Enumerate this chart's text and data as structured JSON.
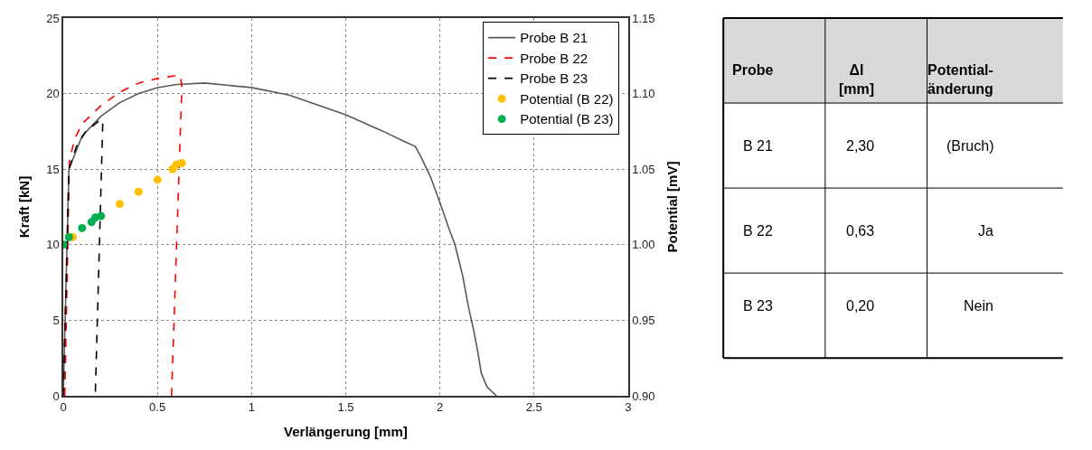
{
  "chart_data": [
    {
      "type": "line",
      "xlabel": "Verlängerung [mm]",
      "ylabel": "Kraft [kN]",
      "y2label": "Potential [mV]",
      "xlim": [
        0,
        3
      ],
      "xticks": [
        0,
        0.5,
        1,
        1.5,
        2,
        2.5,
        3
      ],
      "ylim": [
        0,
        25
      ],
      "yticks": [
        0,
        5,
        10,
        15,
        20,
        25
      ],
      "y2lim": [
        0.9,
        1.15
      ],
      "y2ticks": [
        {
          "value": 0.9,
          "label": "0.90"
        },
        {
          "value": 0.95,
          "label": "0.95"
        },
        {
          "value": 1.0,
          "label": "1.00"
        },
        {
          "value": 1.05,
          "label": "1.05"
        },
        {
          "value": 1.1,
          "label": "1.10"
        },
        {
          "value": 1.15,
          "label": "1.15"
        }
      ],
      "grid": true,
      "legend": "top right",
      "series": [
        {
          "name": "Probe B 21",
          "type": "line",
          "line_style": "solid",
          "color": "#595959",
          "x": [
            0,
            0.03,
            0.1,
            0.2,
            0.3,
            0.4,
            0.5,
            0.6,
            0.75,
            1.0,
            1.2,
            1.5,
            1.7,
            1.8,
            1.87,
            1.9,
            1.95,
            2.0,
            2.05,
            2.08,
            2.12,
            2.15,
            2.18,
            2.2,
            2.22,
            2.25,
            2.3
          ],
          "values": [
            0,
            15,
            17.2,
            18.5,
            19.4,
            20,
            20.4,
            20.6,
            20.7,
            20.4,
            19.9,
            18.6,
            17.5,
            16.9,
            16.5,
            15.8,
            14.5,
            12.8,
            11,
            10,
            8,
            6,
            4.3,
            3,
            1.5,
            0.6,
            0
          ]
        },
        {
          "name": "Probe B 22",
          "type": "line",
          "line_style": "dashed",
          "color": "#ff0000",
          "x": [
            0.008,
            0.016,
            0.024,
            0.032,
            0.06,
            0.1,
            0.2,
            0.3,
            0.4,
            0.5,
            0.6,
            0.62,
            0.63,
            0.575
          ],
          "values": [
            0,
            5,
            10,
            15.5,
            17,
            18,
            19.2,
            20.1,
            20.7,
            21,
            21.2,
            21.2,
            20.5,
            0
          ]
        },
        {
          "name": "Probe B 23",
          "type": "line",
          "line_style": "dashed",
          "color": "#000000",
          "x": [
            0,
            0.02,
            0.03,
            0.07,
            0.12,
            0.2,
            0.21,
            0.17
          ],
          "values": [
            0,
            10,
            15,
            16.5,
            17.5,
            18.3,
            18.2,
            0
          ]
        },
        {
          "name": "Potential (B 22)",
          "type": "scatter",
          "axis": "y2",
          "marker": "circle",
          "color": "#ffc000",
          "x": [
            0.05,
            0.3,
            0.4,
            0.5,
            0.58,
            0.6,
            0.63
          ],
          "values": [
            1.005,
            1.027,
            1.035,
            1.043,
            1.05,
            1.053,
            1.054
          ]
        },
        {
          "name": "Potential (B 23)",
          "type": "scatter",
          "axis": "y2",
          "marker": "circle",
          "color": "#00b050",
          "x": [
            0,
            0.03,
            0.1,
            0.15,
            0.17,
            0.2
          ],
          "values": [
            1.0,
            1.005,
            1.011,
            1.015,
            1.018,
            1.019
          ]
        }
      ]
    },
    {
      "type": "other",
      "annotations": [
        "Probe",
        "Δl\n[mm]",
        "Potential-\nänderung",
        "B 21",
        "2,30",
        "(Bruch)",
        "B 22",
        "0,63",
        "Ja",
        "B 23",
        "0,20",
        "Nein"
      ]
    }
  ]
}
